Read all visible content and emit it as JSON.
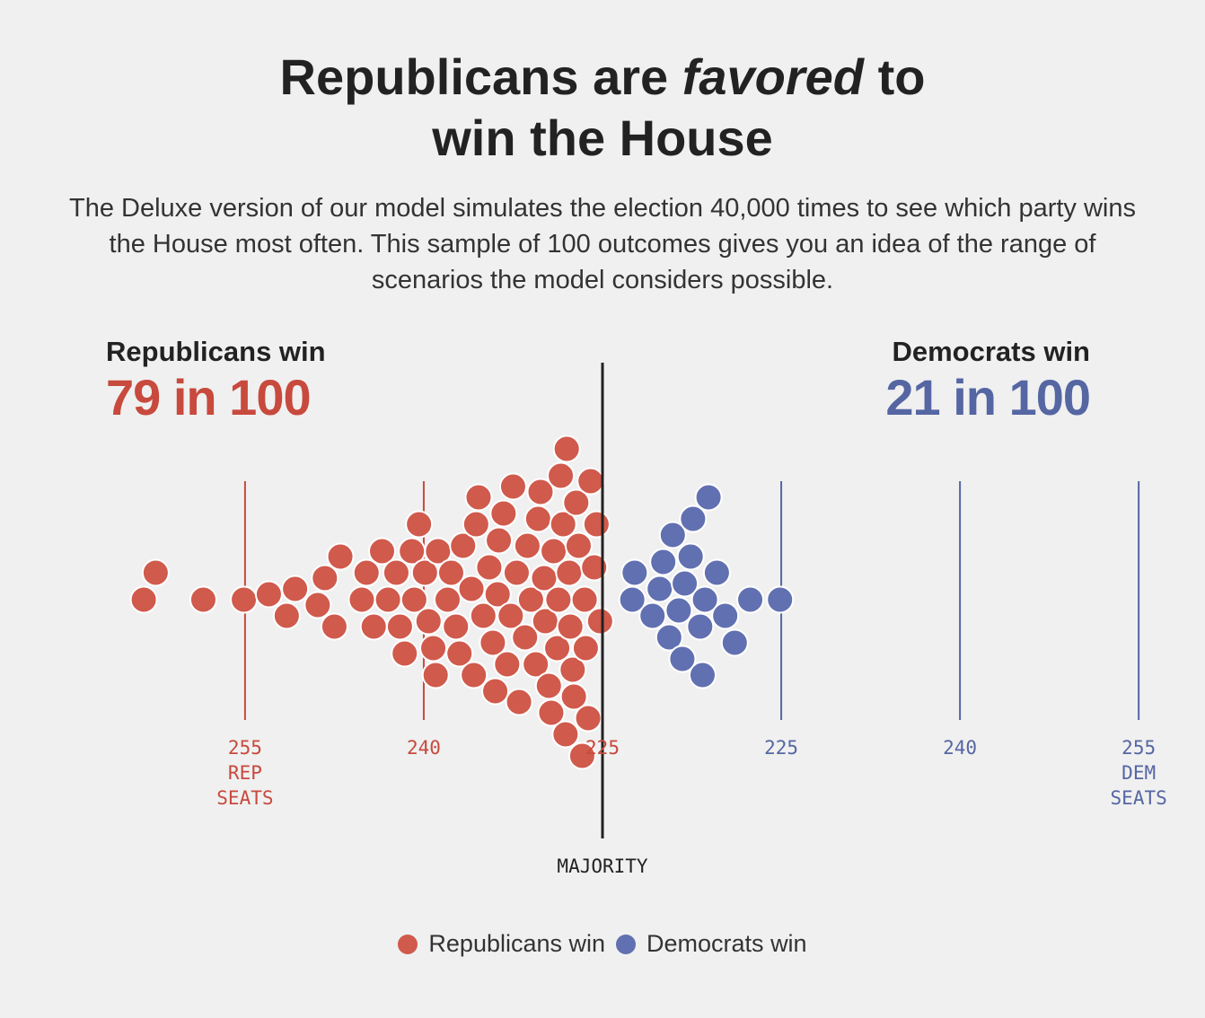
{
  "headline": {
    "pre": "Republicans are ",
    "emph": "favored",
    "post": " to",
    "line2": "win the House"
  },
  "subhead": "The Deluxe version of our model simulates the election 40,000 times to see which party wins the House most often. This sample of 100 outcomes gives you an idea of the range of scenarios the model considers possible.",
  "republicans": {
    "label": "Republicans win",
    "odds": "79 in 100"
  },
  "democrats": {
    "label": "Democrats win",
    "odds": "21 in 100"
  },
  "majority_label": "MAJORITY",
  "legend": [
    {
      "label": "Republicans win",
      "color": "#d05a4c"
    },
    {
      "label": "Democrats win",
      "color": "#6170b0"
    }
  ],
  "colors": {
    "republican": "#d05a4c",
    "republican_text": "#c8493d",
    "democrat": "#6170b0",
    "democrat_text": "#5566a3",
    "majority_line": "#222222"
  },
  "chart_data": {
    "type": "scatter",
    "style": "beeswarm",
    "x_unit": "seat margin from majority (rep seats left, dem seats right)",
    "xlim": [
      -55,
      30
    ],
    "majority_x": 0,
    "ticks": [
      {
        "x": -30,
        "label": "255",
        "sub": [
          "REP",
          "SEATS"
        ],
        "party": "rep"
      },
      {
        "x": -15,
        "label": "240",
        "sub": [],
        "party": "rep"
      },
      {
        "x": 0,
        "label": "225",
        "sub": [],
        "party": "rep"
      },
      {
        "x": 15,
        "label": "225",
        "sub": [],
        "party": "dem"
      },
      {
        "x": 30,
        "label": "240",
        "sub": [],
        "party": "dem"
      },
      {
        "x": 45,
        "label": "255",
        "sub": [
          "DEM",
          "SEATS"
        ],
        "party": "dem"
      }
    ],
    "series": [
      {
        "name": "Republicans win",
        "party": "rep",
        "count": 79,
        "x": [
          -38.5,
          -37.5,
          -33.5,
          -30.1,
          -28.0,
          -26.5,
          -25.8,
          -23.9,
          -23.3,
          -22.5,
          -22.0,
          -20.2,
          -19.8,
          -19.2,
          -18.0,
          -18.5,
          -17.3,
          -17.0,
          -16.6,
          -15.4,
          -15.8,
          -14.6,
          -14.0,
          -14.2,
          -13.8,
          -12.7,
          -13.0,
          -11.7,
          -12.0,
          -11.0,
          -10.4,
          -10.6,
          -10.0,
          -9.2,
          -9.0,
          -8.7,
          -8.8,
          -8.3,
          -8.0,
          -7.2,
          -7.7,
          -7.0,
          -6.5,
          -6.0,
          -5.6,
          -5.2,
          -5.4,
          -4.8,
          -4.3,
          -4.5,
          -4.1,
          -3.8,
          -3.5,
          -3.1,
          -3.3,
          -3.0,
          -2.5,
          -2.7,
          -2.2,
          -2.0,
          -1.7,
          -1.4,
          -1.2,
          -1.0,
          -0.7,
          -0.5,
          -0.2,
          -1.5,
          -2.4,
          -3.7,
          -4.9,
          -6.3,
          -7.5,
          -9.5,
          -10.8,
          -12.3,
          -14.9,
          -16.0,
          -2.8
        ],
        "level": [
          0,
          0,
          0,
          0,
          0,
          0,
          0,
          0,
          1,
          0,
          0,
          1,
          0,
          1,
          0,
          0,
          1,
          0,
          0,
          0,
          1,
          0,
          0,
          1,
          0,
          0,
          1,
          0,
          1,
          1,
          0,
          0,
          1,
          0,
          0,
          0,
          1,
          0,
          0,
          0,
          1,
          0,
          0,
          0,
          1,
          0,
          0,
          0,
          1,
          0,
          1,
          0,
          0,
          1,
          0,
          0,
          1,
          0,
          1,
          0,
          1,
          0,
          0,
          1,
          0,
          1,
          0,
          0,
          1,
          0,
          0,
          1,
          0,
          0,
          1,
          0,
          0,
          1,
          0
        ]
      },
      {
        "name": "Democrats win",
        "party": "dem",
        "count": 21,
        "x": [
          2.5,
          2.7,
          4.2,
          4.8,
          5.1,
          5.6,
          5.9,
          6.4,
          6.7,
          6.9,
          7.4,
          7.6,
          8.2,
          8.4,
          8.6,
          8.9,
          9.6,
          10.3,
          11.1,
          12.4,
          14.9
        ],
        "level": [
          0,
          1,
          0,
          1,
          0,
          1,
          0,
          1,
          0,
          1,
          0,
          1,
          0,
          1,
          0,
          1,
          0,
          1,
          0,
          0,
          0
        ]
      }
    ]
  }
}
